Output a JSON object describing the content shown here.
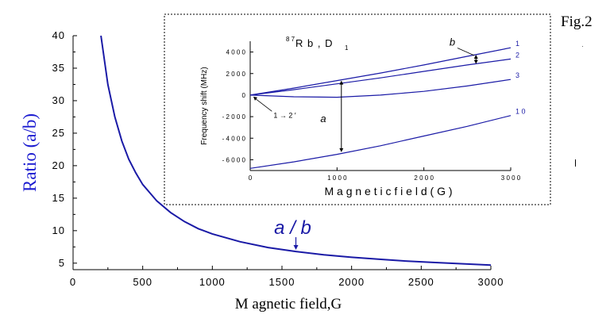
{
  "figure_label": "Fig.2",
  "colors": {
    "main_curve": "#1a1aa6",
    "inset_curves": "#1a1aa6",
    "axis": "#000000",
    "ylabel": "#1a1ad0"
  },
  "chart_data": [
    {
      "type": "line",
      "title": "",
      "xlabel": "M agnetic  field,G",
      "ylabel": "Ratio (a/b)",
      "xlim": [
        0,
        3000
      ],
      "ylim": [
        4,
        40
      ],
      "xticks": [
        0,
        500,
        1000,
        1500,
        2000,
        2500,
        3000
      ],
      "yticks": [
        5,
        10,
        15,
        20,
        25,
        30,
        35,
        40
      ],
      "grid": false,
      "series": [
        {
          "name": "",
          "x": [
            200,
            250,
            300,
            350,
            400,
            450,
            500,
            600,
            700,
            800,
            900,
            1000,
            1200,
            1400,
            1600,
            1800,
            2000,
            2200,
            2400,
            2600,
            2800,
            3000
          ],
          "y": [
            40,
            32.5,
            27.5,
            23.8,
            21.0,
            18.9,
            17.1,
            14.6,
            12.8,
            11.4,
            10.3,
            9.5,
            8.3,
            7.4,
            6.8,
            6.3,
            5.9,
            5.6,
            5.3,
            5.1,
            4.9,
            4.7
          ]
        }
      ],
      "annotations": [
        {
          "text": "a / b",
          "x": 1600,
          "y": 6.8
        }
      ]
    },
    {
      "type": "line",
      "title": "87 R b ,  D 1",
      "title_parts": {
        "superscript": "8 7",
        "main": "R b ,  D",
        "subscript": "1"
      },
      "xlabel": "M a g n e t i c   f i e l d   ( G )",
      "ylabel": "Frequency shift (MHz)",
      "xlim": [
        0,
        3000
      ],
      "ylim": [
        -7000,
        5000
      ],
      "xticks": [
        0,
        1000,
        2000,
        3000
      ],
      "yticks": [
        -6000,
        -4000,
        -2000,
        0,
        2000,
        4000
      ],
      "xtick_labels": [
        "0",
        "1 0 0 0",
        "2 0 0 0",
        "3 0 0 0"
      ],
      "ytick_labels": [
        "- 6 0 0 0",
        "- 4 0 0 0",
        "- 2 0 0 0",
        "0",
        "2 0 0 0",
        "4 0 0 0"
      ],
      "grid": false,
      "series": [
        {
          "name": "1",
          "x": [
            0,
            500,
            1000,
            1500,
            2000,
            2500,
            3000
          ],
          "y": [
            0,
            650,
            1350,
            2050,
            2800,
            3600,
            4400
          ]
        },
        {
          "name": "2",
          "x": [
            0,
            500,
            1000,
            1500,
            2000,
            2500,
            3000
          ],
          "y": [
            0,
            500,
            1050,
            1600,
            2200,
            2800,
            3350
          ]
        },
        {
          "name": "3",
          "x": [
            0,
            500,
            1000,
            1500,
            2000,
            2500,
            3000
          ],
          "y": [
            0,
            -150,
            -200,
            0,
            350,
            850,
            1450
          ]
        },
        {
          "name": "1 0",
          "x": [
            0,
            500,
            1000,
            1500,
            2000,
            2500,
            3000
          ],
          "y": [
            -6800,
            -6200,
            -5500,
            -4700,
            -3800,
            -2900,
            -1900
          ]
        }
      ],
      "annotations": [
        {
          "text": "a",
          "x": 900,
          "y": -2200
        },
        {
          "text": "b",
          "x": 2350,
          "y": 4300
        },
        {
          "text": "1 → 2 ′",
          "x": 250,
          "y": -1500
        }
      ],
      "arrows": [
        {
          "name": "a-arrow",
          "x": 1050,
          "y_from": 1350,
          "y_to": -5300
        },
        {
          "name": "b-arrow",
          "x": 2600,
          "y_from": 3750,
          "y_to": 2900
        }
      ]
    }
  ]
}
